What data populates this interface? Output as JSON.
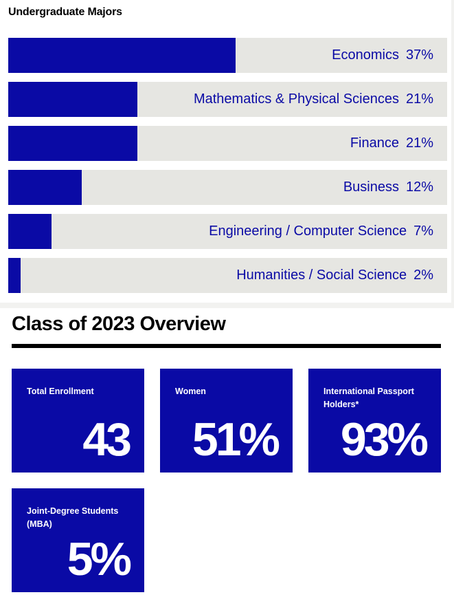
{
  "chart_data": {
    "type": "bar",
    "title": "Undergraduate Majors",
    "categories": [
      "Economics",
      "Mathematics & Physical Sciences",
      "Finance",
      "Business",
      "Engineering / Computer Science",
      "Humanities / Social Science"
    ],
    "values": [
      37,
      21,
      21,
      12,
      7,
      2
    ],
    "value_labels": [
      "37%",
      "21%",
      "21%",
      "12%",
      "7%",
      "2%"
    ],
    "orientation": "horizontal",
    "xlim": [
      0,
      71.5
    ],
    "grid": false
  },
  "overview": {
    "title": "Class of 2023 Overview",
    "stats": [
      {
        "label": "Total Enrollment",
        "value": "43"
      },
      {
        "label": "Women",
        "value": "51%"
      },
      {
        "label": "International Passport Holders*",
        "value": "93%"
      },
      {
        "label": "Joint-Degree Students (MBA)",
        "value": "5%"
      }
    ]
  },
  "colors": {
    "accent": "#0a0aa5",
    "track": "#e6e6e2",
    "text": "#000000"
  }
}
